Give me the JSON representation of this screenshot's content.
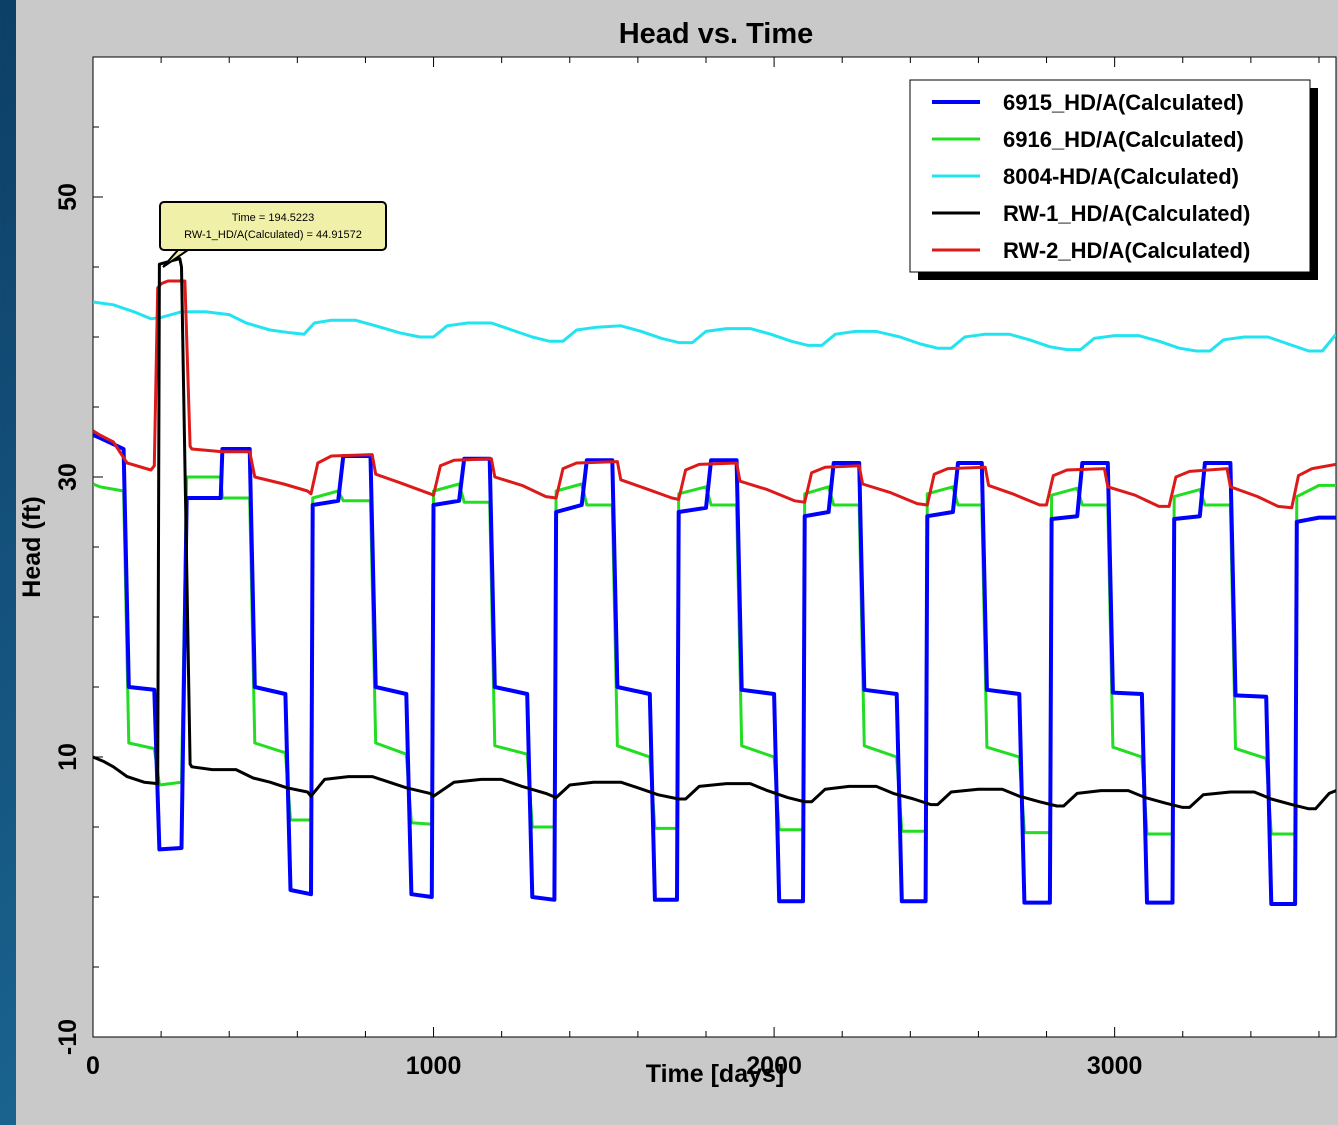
{
  "chart_data": {
    "type": "line",
    "title": "Head vs. Time",
    "xlabel": "Time  [days]",
    "ylabel": "Head (ft)",
    "xlim": [
      0,
      3650
    ],
    "ylim": [
      -10,
      60
    ],
    "x_ticks": [
      0,
      1000,
      2000,
      3000
    ],
    "y_ticks": [
      -10,
      10,
      30,
      50
    ],
    "legend_position": "top-right",
    "grid": false,
    "tooltip": {
      "line1": "Time = 194.5223",
      "line2": "RW-1_HD/A(Calculated) = 44.91572"
    },
    "series": [
      {
        "name": "6915_HD/A(Calculated)",
        "color": "#0000ff",
        "x": [
          0,
          20,
          90,
          105,
          180,
          195,
          260,
          275,
          285,
          375,
          380,
          460,
          475,
          565,
          580,
          640,
          645,
          720,
          735,
          815,
          830,
          920,
          935,
          995,
          1000,
          1075,
          1090,
          1165,
          1180,
          1275,
          1290,
          1355,
          1360,
          1435,
          1450,
          1525,
          1540,
          1635,
          1650,
          1715,
          1720,
          1800,
          1815,
          1890,
          1905,
          2000,
          2015,
          2085,
          2090,
          2160,
          2175,
          2250,
          2265,
          2360,
          2375,
          2445,
          2450,
          2525,
          2540,
          2610,
          2625,
          2720,
          2735,
          2810,
          2815,
          2890,
          2905,
          2980,
          2995,
          3080,
          3095,
          3170,
          3175,
          3250,
          3265,
          3340,
          3355,
          3445,
          3460,
          3530,
          3535,
          3600,
          3650
        ],
        "y": [
          33,
          32.8,
          32,
          15,
          14.8,
          3.4,
          3.5,
          28.5,
          28.5,
          28.5,
          32,
          32,
          15,
          14.5,
          0.5,
          0.2,
          28,
          28.3,
          31.5,
          31.5,
          15,
          14.5,
          0.2,
          0,
          28,
          28.3,
          31.3,
          31.3,
          15,
          14.5,
          0,
          -0.2,
          27.5,
          28,
          31.2,
          31.2,
          15,
          14.5,
          -0.2,
          -0.2,
          27.5,
          27.8,
          31.2,
          31.2,
          14.8,
          14.5,
          -0.3,
          -0.3,
          27.2,
          27.5,
          31,
          31,
          14.8,
          14.5,
          -0.3,
          -0.3,
          27.2,
          27.5,
          31,
          31,
          14.8,
          14.5,
          -0.4,
          -0.4,
          27,
          27.2,
          31,
          31,
          14.6,
          14.5,
          -0.4,
          -0.4,
          27,
          27.2,
          31,
          31,
          14.4,
          14.3,
          -0.5,
          -0.5,
          26.8,
          27.1,
          27.1
        ]
      },
      {
        "name": "6916_HD/A(Calculated)",
        "color": "#22dd22",
        "x": [
          0,
          20,
          90,
          105,
          180,
          195,
          260,
          275,
          285,
          375,
          380,
          460,
          475,
          565,
          580,
          640,
          645,
          720,
          735,
          815,
          830,
          920,
          935,
          995,
          1000,
          1075,
          1090,
          1165,
          1180,
          1275,
          1290,
          1355,
          1360,
          1435,
          1450,
          1525,
          1540,
          1635,
          1650,
          1715,
          1720,
          1800,
          1815,
          1890,
          1905,
          2000,
          2015,
          2085,
          2090,
          2160,
          2175,
          2250,
          2265,
          2360,
          2375,
          2445,
          2450,
          2525,
          2540,
          2610,
          2625,
          2720,
          2735,
          2810,
          2815,
          2890,
          2905,
          2980,
          2995,
          3080,
          3095,
          3170,
          3175,
          3250,
          3265,
          3340,
          3355,
          3445,
          3460,
          3530,
          3535,
          3600,
          3650
        ],
        "y": [
          29.5,
          29.3,
          29,
          11,
          10.6,
          8,
          8.2,
          30,
          30,
          30,
          28.5,
          28.5,
          11,
          10.3,
          5.5,
          5.5,
          28.5,
          29,
          28.3,
          28.3,
          11,
          10.2,
          5.3,
          5.2,
          29,
          29.5,
          28.2,
          28.2,
          10.8,
          10.2,
          5,
          5,
          29,
          29.5,
          28,
          28,
          10.8,
          10,
          4.9,
          4.9,
          28.8,
          29.3,
          28,
          28,
          10.8,
          10,
          4.8,
          4.8,
          28.8,
          29.3,
          28,
          28,
          10.8,
          10,
          4.7,
          4.7,
          28.8,
          29.3,
          28,
          28,
          10.7,
          10,
          4.6,
          4.6,
          28.7,
          29.2,
          28,
          28,
          10.7,
          10,
          4.5,
          4.5,
          28.6,
          29.1,
          28,
          28,
          10.6,
          9.9,
          4.5,
          4.5,
          28.6,
          29.4,
          29.4
        ]
      },
      {
        "name": "8004-HD/A(Calculated)",
        "color": "#22e4f0",
        "x": [
          0,
          60,
          120,
          170,
          200,
          260,
          330,
          400,
          450,
          520,
          580,
          620,
          650,
          700,
          770,
          830,
          900,
          960,
          1000,
          1040,
          1100,
          1170,
          1230,
          1290,
          1340,
          1380,
          1420,
          1480,
          1550,
          1610,
          1670,
          1720,
          1760,
          1800,
          1860,
          1930,
          1990,
          2050,
          2100,
          2140,
          2180,
          2240,
          2300,
          2370,
          2430,
          2480,
          2520,
          2560,
          2620,
          2690,
          2750,
          2810,
          2860,
          2900,
          2940,
          3000,
          3070,
          3130,
          3190,
          3240,
          3280,
          3320,
          3380,
          3450,
          3510,
          3570,
          3610,
          3650
        ],
        "y": [
          42.5,
          42.3,
          41.8,
          41.3,
          41.4,
          41.8,
          41.8,
          41.6,
          41,
          40.5,
          40.3,
          40.2,
          41,
          41.2,
          41.2,
          40.8,
          40.3,
          40,
          40,
          40.8,
          41,
          41,
          40.5,
          40,
          39.7,
          39.7,
          40.5,
          40.7,
          40.8,
          40.4,
          39.9,
          39.6,
          39.6,
          40.4,
          40.6,
          40.6,
          40.2,
          39.7,
          39.4,
          39.4,
          40.2,
          40.4,
          40.4,
          40,
          39.5,
          39.2,
          39.2,
          40,
          40.2,
          40.2,
          39.8,
          39.3,
          39.1,
          39.1,
          39.9,
          40.1,
          40.1,
          39.7,
          39.2,
          39,
          39,
          39.8,
          40,
          40,
          39.5,
          39,
          39,
          40.2
        ]
      },
      {
        "name": "RW-1_HD/A(Calculated)",
        "color": "#000000",
        "x": [
          0,
          30,
          60,
          100,
          150,
          190,
          195,
          255,
          260,
          285,
          290,
          350,
          420,
          470,
          520,
          570,
          630,
          640,
          680,
          750,
          820,
          870,
          920,
          990,
          1000,
          1060,
          1140,
          1200,
          1260,
          1330,
          1360,
          1400,
          1470,
          1550,
          1600,
          1660,
          1720,
          1740,
          1780,
          1860,
          1930,
          1980,
          2040,
          2090,
          2110,
          2150,
          2220,
          2300,
          2350,
          2410,
          2460,
          2480,
          2520,
          2600,
          2670,
          2720,
          2780,
          2830,
          2850,
          2890,
          2960,
          3040,
          3090,
          3150,
          3200,
          3220,
          3260,
          3340,
          3410,
          3460,
          3520,
          3570,
          3590,
          3630,
          3650
        ],
        "y": [
          10,
          9.7,
          9.3,
          8.6,
          8.2,
          8.1,
          45.2,
          45.6,
          45,
          9.5,
          9.3,
          9.1,
          9.1,
          8.5,
          8.2,
          7.8,
          7.5,
          7.2,
          8.4,
          8.6,
          8.6,
          8.2,
          7.8,
          7.4,
          7.2,
          8.2,
          8.4,
          8.4,
          7.9,
          7.4,
          7.1,
          8,
          8.2,
          8.2,
          7.8,
          7.3,
          7,
          7,
          7.9,
          8.1,
          8.1,
          7.6,
          7.1,
          6.8,
          6.8,
          7.7,
          7.9,
          7.9,
          7.4,
          7,
          6.6,
          6.6,
          7.5,
          7.7,
          7.7,
          7.2,
          6.8,
          6.5,
          6.5,
          7.4,
          7.6,
          7.6,
          7.1,
          6.7,
          6.4,
          6.4,
          7.3,
          7.5,
          7.5,
          7,
          6.6,
          6.3,
          6.3,
          7.4,
          7.6
        ]
      },
      {
        "name": "RW-2_HD/A(Calculated)",
        "color": "#dd1a1a",
        "x": [
          0,
          20,
          60,
          100,
          170,
          180,
          190,
          200,
          220,
          270,
          285,
          290,
          380,
          460,
          475,
          560,
          630,
          640,
          660,
          700,
          820,
          830,
          900,
          990,
          1000,
          1020,
          1060,
          1170,
          1180,
          1260,
          1330,
          1360,
          1380,
          1420,
          1540,
          1550,
          1620,
          1700,
          1720,
          1740,
          1780,
          1890,
          1900,
          1980,
          2060,
          2090,
          2110,
          2150,
          2250,
          2260,
          2340,
          2420,
          2450,
          2470,
          2510,
          2620,
          2630,
          2700,
          2780,
          2800,
          2820,
          2860,
          2970,
          2980,
          3060,
          3130,
          3160,
          3180,
          3220,
          3330,
          3340,
          3420,
          3480,
          3520,
          3540,
          3580,
          3650
        ],
        "y": [
          33.3,
          33,
          32.5,
          31,
          30.5,
          30.8,
          43.5,
          43.8,
          44,
          44,
          32.2,
          32,
          31.8,
          31.8,
          30,
          29.5,
          29,
          28.8,
          31,
          31.5,
          31.6,
          30.2,
          29.6,
          28.8,
          28.7,
          30.8,
          31.2,
          31.3,
          30,
          29.4,
          28.6,
          28.5,
          30.6,
          31,
          31.1,
          29.8,
          29.2,
          28.5,
          28.4,
          30.5,
          30.9,
          31,
          29.7,
          29.1,
          28.3,
          28.2,
          30.3,
          30.7,
          30.8,
          29.5,
          28.9,
          28.1,
          28,
          30.2,
          30.6,
          30.7,
          29.4,
          28.8,
          28,
          28,
          30.1,
          30.5,
          30.6,
          29.3,
          28.7,
          27.9,
          27.9,
          30,
          30.4,
          30.6,
          29.3,
          28.6,
          27.9,
          27.8,
          30.1,
          30.6,
          30.9
        ]
      }
    ]
  }
}
